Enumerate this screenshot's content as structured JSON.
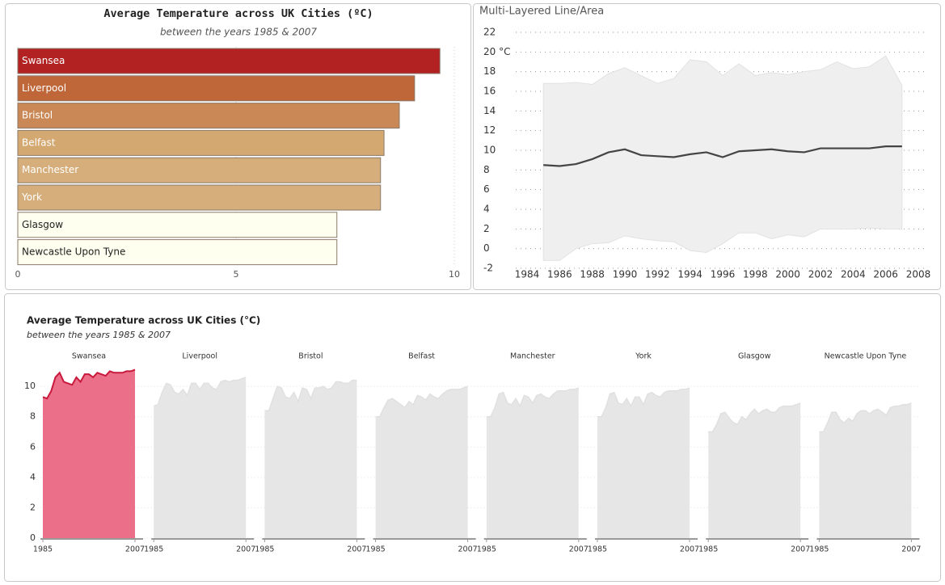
{
  "chart_data": [
    {
      "type": "bar",
      "orientation": "horizontal",
      "title": "Average Temperature across UK Cities (ºC)",
      "subtitle": "between the years 1985 & 2007",
      "categories": [
        "Swansea",
        "Liverpool",
        "Bristol",
        "Belfast",
        "Manchester",
        "York",
        "Glasgow",
        "Newcastle Upon Tyne"
      ],
      "values": [
        9.67,
        9.09,
        8.74,
        8.39,
        8.31,
        8.31,
        7.31,
        7.31
      ],
      "colors": [
        "#b22222",
        "#c0673a",
        "#c98855",
        "#d4a871",
        "#d6ae7b",
        "#d6ae7b",
        "#fffff0",
        "#fffff0"
      ],
      "xlim": [
        0,
        10
      ],
      "xticks": [
        0,
        5,
        10
      ],
      "grid": true
    },
    {
      "type": "line_band",
      "title": "Multi-Layered Line/Area",
      "x": [
        1985,
        1986,
        1987,
        1988,
        1989,
        1990,
        1991,
        1992,
        1993,
        1994,
        1995,
        1996,
        1997,
        1998,
        1999,
        2000,
        2001,
        2002,
        2003,
        2004,
        2005,
        2006,
        2007
      ],
      "values": [
        8.5,
        8.4,
        8.6,
        9.1,
        9.8,
        10.1,
        9.5,
        9.4,
        9.3,
        9.6,
        9.8,
        9.3,
        9.9,
        10.0,
        10.1,
        9.9,
        9.8,
        10.2,
        10.2,
        10.2,
        10.2,
        10.4,
        10.4
      ],
      "band_upper": [
        16.8,
        16.8,
        16.9,
        16.7,
        17.8,
        18.4,
        17.6,
        16.8,
        17.3,
        19.2,
        19.0,
        17.6,
        18.8,
        17.6,
        17.9,
        17.7,
        18.0,
        18.2,
        19.0,
        18.3,
        18.5,
        19.6,
        16.6
      ],
      "band_lower": [
        -1.2,
        -1.2,
        0.0,
        0.5,
        0.6,
        1.3,
        1.0,
        0.8,
        0.7,
        -0.2,
        -0.4,
        0.5,
        1.6,
        1.6,
        1.0,
        1.4,
        1.2,
        2.0,
        2.0,
        2.0,
        2.1,
        2.0,
        2.0
      ],
      "color": "#444444",
      "band_color": "#efefef",
      "xlim": [
        1984,
        2008
      ],
      "xticks": [
        1984,
        1986,
        1988,
        1990,
        1992,
        1994,
        1996,
        1998,
        2000,
        2002,
        2004,
        2006,
        2008
      ],
      "ylim": [
        -2,
        22
      ],
      "yticks": [
        -2,
        0,
        2,
        4,
        6,
        8,
        10,
        12,
        14,
        16,
        18,
        {
          "value": 20,
          "label": "20 °C"
        },
        22
      ],
      "grid": true
    },
    {
      "type": "small_multiples_area",
      "title": "Average Temperature across UK Cities (°C)",
      "subtitle": "between the years 1985 & 2007",
      "x": [
        1985,
        1986,
        1987,
        1988,
        1989,
        1990,
        1991,
        1992,
        1993,
        1994,
        1995,
        1996,
        1997,
        1998,
        1999,
        2000,
        2001,
        2002,
        2003,
        2004,
        2005,
        2006,
        2007
      ],
      "xticks": [
        1985,
        2007
      ],
      "ylim": [
        0,
        11.5
      ],
      "yticks": [
        0,
        2,
        4,
        6,
        8,
        10
      ],
      "grid": true,
      "series": [
        {
          "name": "Swansea",
          "color": "#ec6f89",
          "line_color": "#c8193c",
          "values": [
            9.3,
            9.2,
            9.7,
            10.6,
            10.9,
            10.3,
            10.2,
            10.1,
            10.6,
            10.3,
            10.8,
            10.8,
            10.6,
            10.9,
            10.8,
            10.7,
            11.0,
            10.9,
            10.9,
            10.9,
            11.0,
            11.0,
            11.1
          ]
        },
        {
          "name": "Liverpool",
          "color": "#e6e6e6",
          "line_color": "#e0e0e0",
          "values": [
            8.7,
            8.8,
            9.6,
            10.2,
            10.1,
            9.6,
            9.5,
            9.8,
            9.4,
            10.2,
            10.2,
            9.8,
            10.2,
            10.2,
            9.9,
            9.8,
            10.3,
            10.4,
            10.3,
            10.4,
            10.4,
            10.5,
            10.6
          ]
        },
        {
          "name": "Bristol",
          "color": "#e6e6e6",
          "line_color": "#e0e0e0",
          "values": [
            8.4,
            8.4,
            9.2,
            10.0,
            9.9,
            9.3,
            9.2,
            9.6,
            9.0,
            9.9,
            9.8,
            9.2,
            9.9,
            9.9,
            10.0,
            9.8,
            9.9,
            10.3,
            10.3,
            10.2,
            10.2,
            10.4,
            10.4
          ]
        },
        {
          "name": "Belfast",
          "color": "#e6e6e6",
          "line_color": "#e0e0e0",
          "values": [
            8.0,
            8.0,
            8.6,
            9.1,
            9.2,
            9.0,
            8.8,
            8.6,
            9.0,
            8.8,
            9.4,
            9.3,
            9.1,
            9.5,
            9.3,
            9.2,
            9.5,
            9.7,
            9.8,
            9.8,
            9.8,
            9.9,
            10.0
          ]
        },
        {
          "name": "Manchester",
          "color": "#e6e6e6",
          "line_color": "#e0e0e0",
          "values": [
            8.0,
            8.0,
            8.6,
            9.5,
            9.6,
            8.9,
            8.8,
            9.2,
            8.7,
            9.4,
            9.3,
            8.9,
            9.4,
            9.5,
            9.3,
            9.2,
            9.5,
            9.7,
            9.7,
            9.7,
            9.8,
            9.8,
            9.9
          ]
        },
        {
          "name": "York",
          "color": "#e6e6e6",
          "line_color": "#e0e0e0",
          "values": [
            8.0,
            8.0,
            8.6,
            9.5,
            9.6,
            8.9,
            8.8,
            9.2,
            8.7,
            9.3,
            9.3,
            8.8,
            9.5,
            9.6,
            9.4,
            9.3,
            9.6,
            9.7,
            9.7,
            9.7,
            9.8,
            9.8,
            9.9
          ]
        },
        {
          "name": "Glasgow",
          "color": "#e6e6e6",
          "line_color": "#e0e0e0",
          "values": [
            7.0,
            7.0,
            7.5,
            8.2,
            8.3,
            7.9,
            7.6,
            7.5,
            8.0,
            7.8,
            8.2,
            8.5,
            8.2,
            8.4,
            8.5,
            8.3,
            8.3,
            8.6,
            8.7,
            8.7,
            8.7,
            8.8,
            8.9
          ]
        },
        {
          "name": "Newcastle Upon Tyne",
          "color": "#e6e6e6",
          "line_color": "#e0e0e0",
          "values": [
            7.0,
            7.0,
            7.6,
            8.3,
            8.3,
            7.8,
            7.6,
            7.9,
            7.7,
            8.2,
            8.4,
            8.4,
            8.2,
            8.4,
            8.5,
            8.3,
            8.1,
            8.6,
            8.7,
            8.7,
            8.8,
            8.8,
            8.9
          ]
        }
      ]
    }
  ]
}
